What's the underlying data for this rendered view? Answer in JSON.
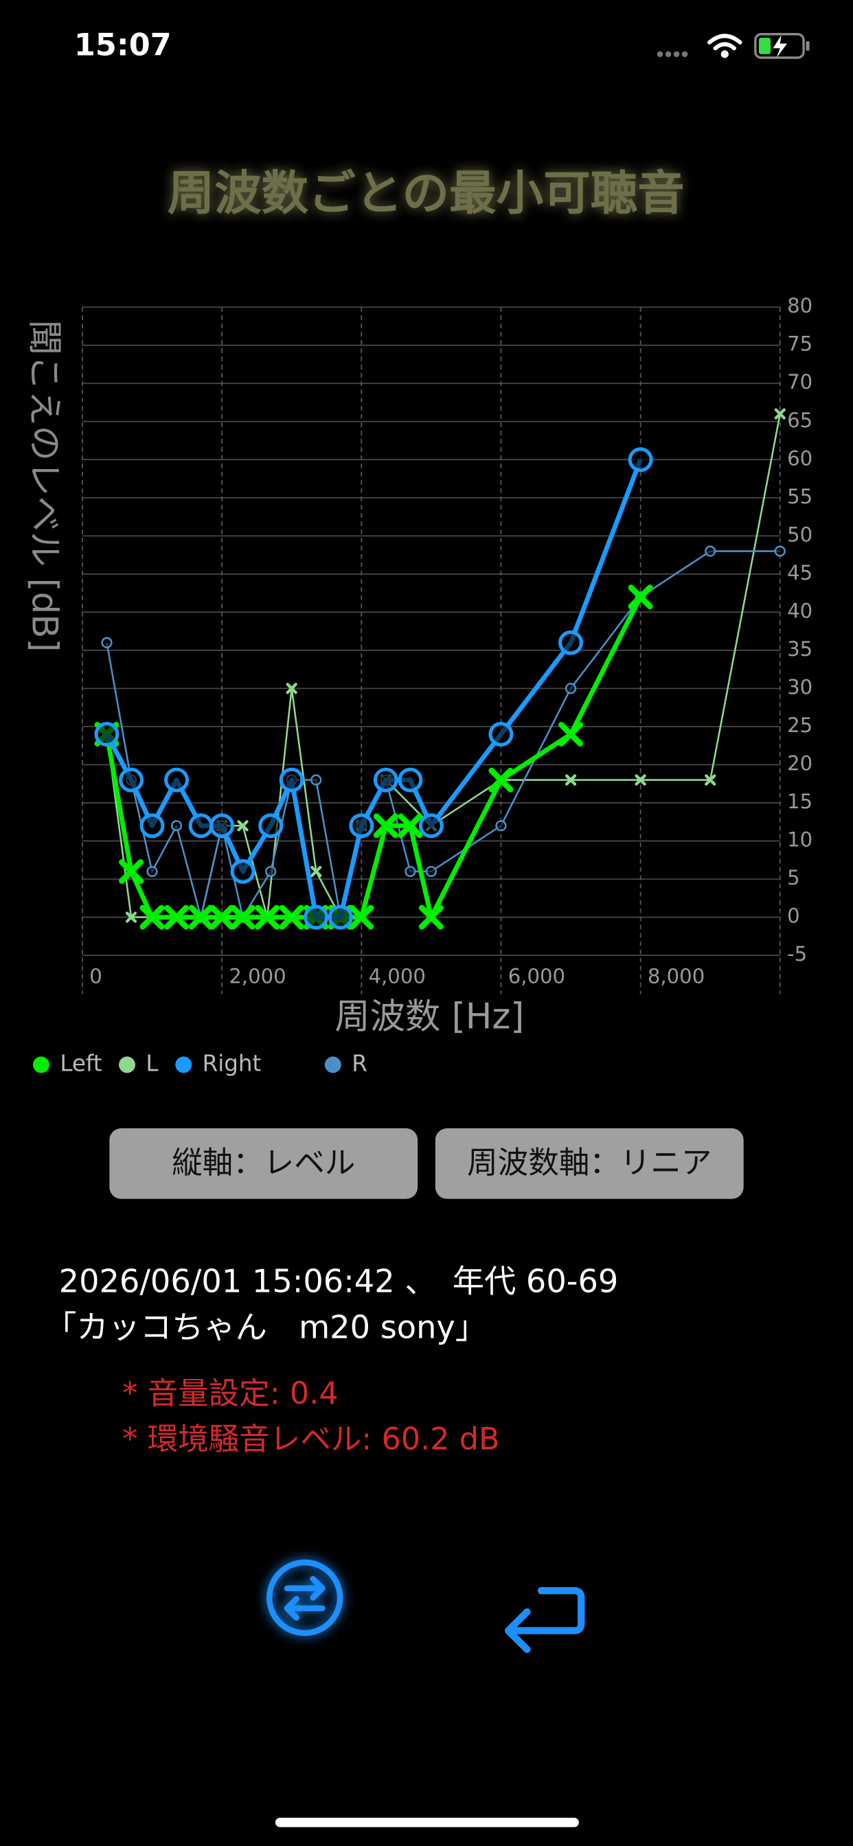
{
  "status_bar": {
    "time": "15:07"
  },
  "title": "周波数ごとの最小可聴音",
  "chart_data": {
    "type": "line",
    "x_label": "周波数 [Hz]",
    "y_label": "聞こえのレベル [dB]",
    "xlim": [
      0,
      10000
    ],
    "xticks": [
      0,
      {
        "value": 2000,
        "label": "2,000"
      },
      {
        "value": 4000,
        "label": "4,000"
      },
      {
        "value": 6000,
        "label": "6,000"
      },
      {
        "value": 8000,
        "label": "8,000"
      }
    ],
    "ylim": [
      -5,
      80
    ],
    "yticks": [
      -5,
      0,
      5,
      10,
      15,
      20,
      25,
      30,
      35,
      40,
      45,
      50,
      55,
      60,
      65,
      70,
      75,
      80
    ],
    "grid": true,
    "series": [
      {
        "name": "Left",
        "color": "#00ee00",
        "marker": "x",
        "x": [
          350,
          700,
          1000,
          1350,
          1700,
          2000,
          2300,
          2650,
          3000,
          3350,
          3700,
          4000,
          4350,
          4700,
          5000,
          6000,
          7000,
          8000
        ],
        "values": [
          24,
          6,
          0,
          0,
          0,
          0,
          0,
          0,
          0,
          0,
          0,
          0,
          12,
          12,
          0,
          18,
          24,
          42
        ]
      },
      {
        "name": "L",
        "color": "#8fd88f",
        "marker": "x",
        "x": [
          350,
          700,
          1000,
          1350,
          1700,
          2000,
          2300,
          2650,
          3000,
          3350,
          3700,
          4000,
          4350,
          5000,
          6000,
          7000,
          8000,
          9000,
          10000
        ],
        "values": [
          24,
          0,
          0,
          0,
          0,
          12,
          12,
          0,
          30,
          6,
          0,
          12,
          18,
          12,
          18,
          18,
          18,
          18,
          66
        ]
      },
      {
        "name": "Right",
        "color": "#1a9bff",
        "marker": "o",
        "x": [
          350,
          700,
          1000,
          1350,
          1700,
          2000,
          2300,
          2700,
          3000,
          3350,
          3700,
          4000,
          4350,
          4700,
          5000,
          6000,
          7000,
          8000
        ],
        "values": [
          24,
          18,
          12,
          18,
          12,
          12,
          6,
          12,
          18,
          0,
          0,
          12,
          18,
          18,
          12,
          24,
          36,
          60
        ]
      },
      {
        "name": "R",
        "color": "#4a90c8",
        "marker": "o",
        "x": [
          350,
          700,
          1000,
          1350,
          1700,
          2000,
          2300,
          2700,
          3000,
          3350,
          3700,
          4000,
          4350,
          4700,
          5000,
          6000,
          7000,
          8000,
          9000,
          10000
        ],
        "values": [
          36,
          18,
          6,
          12,
          0,
          12,
          0,
          6,
          18,
          18,
          0,
          12,
          18,
          6,
          6,
          12,
          30,
          42,
          48,
          48
        ]
      }
    ]
  },
  "buttons": [
    {
      "label": "縦軸：レベル"
    },
    {
      "label": "周波数軸：リニア"
    }
  ],
  "info": {
    "datetime": "2026/06/01 15:06:42 、　年代 60-69",
    "name": "「カッコちゃん　m20 sony」",
    "notes": [
      "* 音量設定: 0.4",
      "* 環境騒音レベル: 60.2 dB"
    ]
  }
}
